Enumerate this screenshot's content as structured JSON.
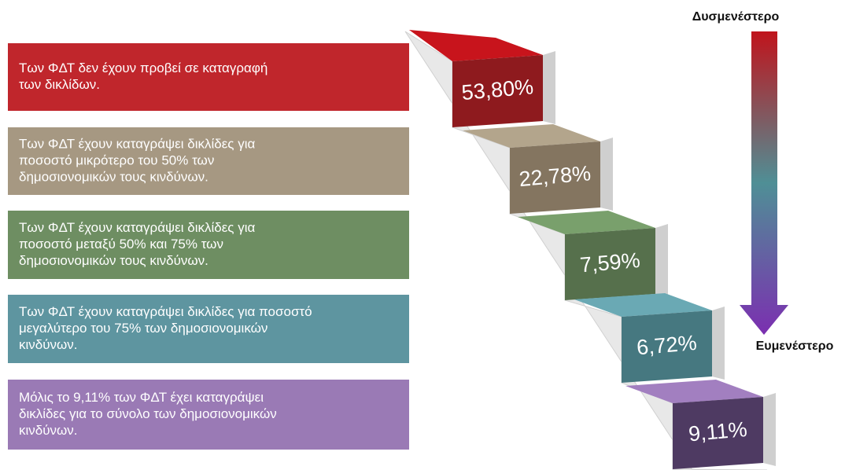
{
  "worse_label": "Δυσμενέστερο",
  "better_label": "Ευμενέστερο",
  "steps": [
    {
      "text": [
        "Των ΦΔΤ  δεν έχουν προβεί σε καταγραφή",
        "των δικλίδων."
      ],
      "value": "53,80%"
    },
    {
      "text": [
        "Των ΦΔΤ  έχουν καταγράψει  δικλίδες για",
        "ποσοστό  μικρότερο του 50% των",
        "δημοσιονομικών τους κινδύνων."
      ],
      "value": "22,78%"
    },
    {
      "text": [
        "Των ΦΔΤ  έχουν καταγράψει δικλίδες για",
        "ποσοστό  μεταξύ 50% και 75% των",
        "δημοσιονομικών τους κινδύνων."
      ],
      "value": "7,59%"
    },
    {
      "text": [
        "Των ΦΔΤ έχουν καταγράψει δικλίδες για ποσοστό",
        "μεγαλύτερο του 75% των δημοσιονομικών",
        "κινδύνων."
      ],
      "value": "6,72%"
    },
    {
      "text": [
        "Μόλις το 9,11% των ΦΔΤ  έχει καταγράψει",
        "δικλίδες για το σύνολο των δημοσιονομικών",
        "κινδύνων."
      ],
      "value": "9,11%"
    }
  ]
}
